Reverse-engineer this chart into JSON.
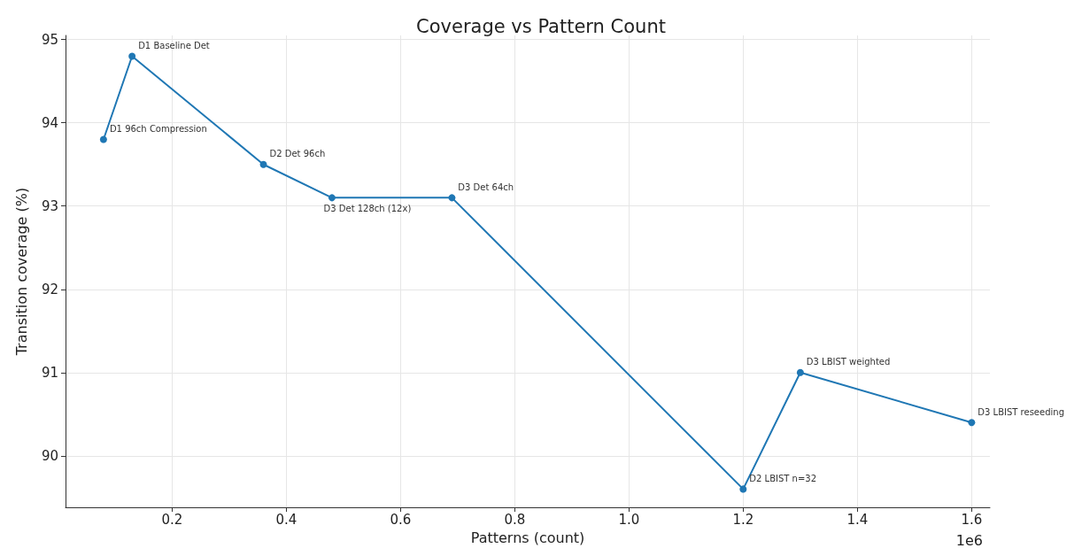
{
  "chart_data": {
    "type": "line",
    "title": "Coverage vs Pattern Count",
    "xlabel": "Patterns (count)",
    "ylabel": "Transition coverage (%)",
    "x": [
      0.08,
      0.13,
      0.36,
      0.48,
      0.69,
      1.2,
      1.3,
      1.6
    ],
    "series": [
      {
        "color": "#1f77b4",
        "values": [
          93.8,
          94.8,
          93.5,
          93.1,
          93.1,
          89.6,
          91.0,
          90.4
        ]
      }
    ],
    "xlim": [
      0.0135,
      1.632
    ],
    "xticks": [
      0.2,
      0.4,
      0.6,
      0.8,
      {
        "value": 1,
        "label": "1.0"
      },
      1.2,
      1.4,
      1.6
    ],
    "ylim": [
      89.38,
      95.05
    ],
    "yticks": [
      90,
      91,
      92,
      93,
      94,
      95
    ],
    "grid": true,
    "marker": "circle",
    "line_style": "solid",
    "annotations": [
      {
        "text": "D1 96ch Compression",
        "x": 0.08,
        "y": 93.8
      },
      {
        "text": "D1 Baseline Det",
        "x": 0.13,
        "y": 94.8
      },
      {
        "text": "D2 Det 96ch",
        "x": 0.36,
        "y": 93.5
      },
      {
        "text": "D3 Det 128ch (12x)",
        "x": 0.48,
        "y": 93.1
      },
      {
        "text": "D3 Det 64ch",
        "x": 0.69,
        "y": 93.1
      },
      {
        "text": "D2 LBIST n=32",
        "x": 1.2,
        "y": 89.6
      },
      {
        "text": "D3 LBIST weighted",
        "x": 1.3,
        "y": 91.0
      },
      {
        "text": "D3 LBIST reseeding",
        "x": 1.6,
        "y": 90.4
      },
      "1e6"
    ]
  }
}
